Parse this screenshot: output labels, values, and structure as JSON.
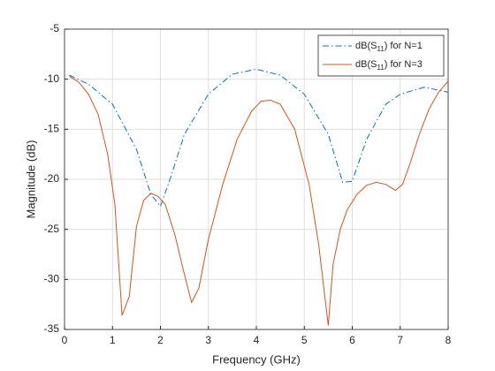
{
  "chart_data": {
    "type": "line",
    "xlabel": "Frequency (GHz)",
    "ylabel": "Magnitude (dB)",
    "xlim": [
      0,
      8
    ],
    "xticks": [
      0,
      1,
      2,
      3,
      4,
      5,
      6,
      7,
      8
    ],
    "ylim": [
      -35,
      -5
    ],
    "yticks": [
      -35,
      -30,
      -25,
      -20,
      -15,
      -10,
      -5
    ],
    "grid": true,
    "legend": "northeast",
    "series": [
      {
        "name": "dB(S11) for N=1",
        "color": "#0072BD",
        "linestyle": "-.",
        "x": [
          0.1,
          0.5,
          1.0,
          1.5,
          1.8,
          2.0,
          2.2,
          2.5,
          3.0,
          3.5,
          4.0,
          4.5,
          5.0,
          5.5,
          5.8,
          6.0,
          6.3,
          6.7,
          7.0,
          7.5,
          8.0
        ],
        "values": [
          -9.6,
          -10.5,
          -12.5,
          -17,
          -21.5,
          -22.7,
          -20,
          -15.5,
          -11.5,
          -9.5,
          -9.0,
          -9.6,
          -11.5,
          -15.5,
          -20.3,
          -20.2,
          -16,
          -12.5,
          -11.5,
          -10.8,
          -11.3
        ]
      },
      {
        "name": "dB(S11) for N=3",
        "color": "#D95319",
        "linestyle": "-",
        "x": [
          0.1,
          0.3,
          0.5,
          0.7,
          0.9,
          1.05,
          1.2,
          1.35,
          1.5,
          1.65,
          1.8,
          1.95,
          2.1,
          2.3,
          2.5,
          2.65,
          2.8,
          3.0,
          3.3,
          3.6,
          3.9,
          4.1,
          4.3,
          4.5,
          4.8,
          5.1,
          5.3,
          5.5,
          5.6,
          5.75,
          5.9,
          6.1,
          6.3,
          6.5,
          6.7,
          6.9,
          7.05,
          7.2,
          7.4,
          7.6,
          7.8,
          8.0
        ],
        "values": [
          -9.7,
          -10.3,
          -11.5,
          -13.5,
          -17.5,
          -22.5,
          -33.6,
          -31.7,
          -24.7,
          -22.1,
          -21.4,
          -21.7,
          -22.5,
          -25.5,
          -29.5,
          -32.3,
          -30.9,
          -26,
          -20.5,
          -16,
          -13.2,
          -12.2,
          -12.1,
          -12.5,
          -15,
          -20.5,
          -26.5,
          -34.6,
          -28.5,
          -25,
          -23,
          -21.5,
          -20.6,
          -20.3,
          -20.5,
          -21.1,
          -20.5,
          -18.5,
          -15.5,
          -13,
          -11.3,
          -10.2
        ]
      }
    ]
  }
}
